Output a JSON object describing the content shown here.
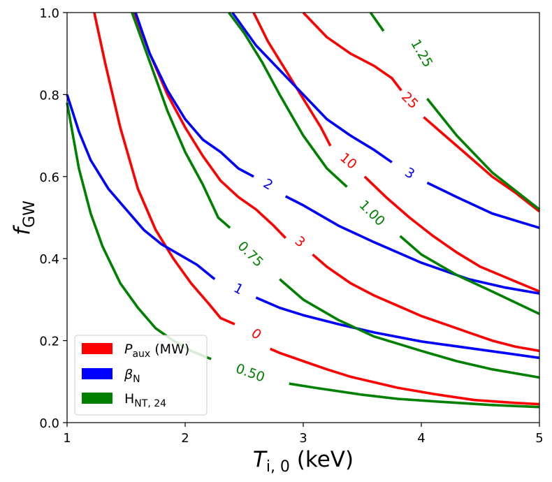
{
  "chart_data": {
    "type": "line",
    "xlabel": "Ti,0 (keV)",
    "ylabel": "fGW",
    "xlim": [
      1,
      5
    ],
    "ylim": [
      0,
      1
    ],
    "x_ticks": [
      "1",
      "2",
      "3",
      "4",
      "5"
    ],
    "y_ticks": [
      "0.0",
      "0.2",
      "0.4",
      "0.6",
      "0.8",
      "1.0"
    ],
    "grid": false,
    "legend": {
      "position": "bottom-left",
      "entries": [
        {
          "label": "Paux (MW)",
          "color": "#ff0000"
        },
        {
          "label": "βN",
          "color": "#0000ff"
        },
        {
          "label": "HNT,24",
          "color": "#008000"
        }
      ]
    },
    "series": [
      {
        "name": "Paux (MW)",
        "color": "#ff0000",
        "levels": [
          {
            "label": "0",
            "label_at": [
              2.6,
              0.215
            ],
            "label_angle": 37,
            "segments": [
              [
                [
                  1.23,
                  1.0
                ],
                [
                  1.32,
                  0.88
                ],
                [
                  1.45,
                  0.72
                ],
                [
                  1.6,
                  0.57
                ],
                [
                  1.75,
                  0.47
                ],
                [
                  1.9,
                  0.4
                ],
                [
                  2.05,
                  0.34
                ],
                [
                  2.2,
                  0.29
                ],
                [
                  2.3,
                  0.255
                ],
                [
                  2.42,
                  0.24
                ]
              ],
              [
                [
                  2.72,
                  0.18
                ],
                [
                  2.8,
                  0.17
                ],
                [
                  3.0,
                  0.15
                ],
                [
                  3.2,
                  0.13
                ],
                [
                  3.4,
                  0.112
                ],
                [
                  3.8,
                  0.085
                ],
                [
                  4.1,
                  0.07
                ],
                [
                  4.45,
                  0.055
                ],
                [
                  4.8,
                  0.048
                ],
                [
                  5.0,
                  0.045
                ]
              ]
            ]
          },
          {
            "label": "3",
            "label_at": [
              2.97,
              0.44
            ],
            "label_angle": 40,
            "segments": [
              [
                [
                  1.57,
                  1.0
                ],
                [
                  1.7,
                  0.9
                ],
                [
                  1.85,
                  0.8
                ],
                [
                  2.0,
                  0.72
                ],
                [
                  2.15,
                  0.65
                ],
                [
                  2.3,
                  0.59
                ],
                [
                  2.45,
                  0.55
                ],
                [
                  2.6,
                  0.52
                ],
                [
                  2.75,
                  0.48
                ],
                [
                  2.85,
                  0.45
                ]
              ],
              [
                [
                  3.08,
                  0.41
                ],
                [
                  3.2,
                  0.38
                ],
                [
                  3.4,
                  0.34
                ],
                [
                  3.6,
                  0.31
                ],
                [
                  3.8,
                  0.285
                ],
                [
                  4.0,
                  0.26
                ],
                [
                  4.2,
                  0.24
                ],
                [
                  4.4,
                  0.22
                ],
                [
                  4.6,
                  0.2
                ],
                [
                  4.8,
                  0.185
                ],
                [
                  5.0,
                  0.175
                ]
              ]
            ]
          },
          {
            "label": "10",
            "label_at": [
              3.38,
              0.637
            ],
            "label_angle": 40,
            "segments": [
              [
                [
                  2.58,
                  1.0
                ],
                [
                  2.7,
                  0.93
                ],
                [
                  2.85,
                  0.86
                ],
                [
                  3.0,
                  0.79
                ],
                [
                  3.15,
                  0.72
                ],
                [
                  3.23,
                  0.675
                ]
              ],
              [
                [
                  3.52,
                  0.6
                ],
                [
                  3.7,
                  0.55
                ],
                [
                  3.9,
                  0.5
                ],
                [
                  4.1,
                  0.455
                ],
                [
                  4.3,
                  0.415
                ],
                [
                  4.5,
                  0.38
                ],
                [
                  4.75,
                  0.35
                ],
                [
                  5.0,
                  0.32
                ]
              ]
            ]
          },
          {
            "label": "25",
            "label_at": [
              3.9,
              0.785
            ],
            "label_angle": 45,
            "segments": [
              [
                [
                  3.0,
                  1.0
                ],
                [
                  3.2,
                  0.94
                ],
                [
                  3.4,
                  0.9
                ],
                [
                  3.6,
                  0.87
                ],
                [
                  3.75,
                  0.84
                ],
                [
                  3.83,
                  0.81
                ]
              ],
              [
                [
                  4.02,
                  0.745
                ],
                [
                  4.2,
                  0.7
                ],
                [
                  4.4,
                  0.65
                ],
                [
                  4.6,
                  0.6
                ],
                [
                  4.8,
                  0.56
                ],
                [
                  5.0,
                  0.515
                ]
              ]
            ]
          }
        ]
      },
      {
        "name": "βN",
        "color": "#0000ff",
        "levels": [
          {
            "label": "1",
            "label_at": [
              2.45,
              0.325
            ],
            "label_angle": 28,
            "segments": [
              [
                [
                  1.0,
                  0.8
                ],
                [
                  1.1,
                  0.71
                ],
                [
                  1.2,
                  0.64
                ],
                [
                  1.35,
                  0.57
                ],
                [
                  1.5,
                  0.52
                ],
                [
                  1.65,
                  0.47
                ],
                [
                  1.8,
                  0.435
                ],
                [
                  1.95,
                  0.41
                ],
                [
                  2.1,
                  0.385
                ],
                [
                  2.25,
                  0.35
                ]
              ],
              [
                [
                  2.6,
                  0.305
                ],
                [
                  2.8,
                  0.28
                ],
                [
                  3.0,
                  0.262
                ],
                [
                  3.3,
                  0.24
                ],
                [
                  3.6,
                  0.22
                ],
                [
                  4.0,
                  0.198
                ],
                [
                  4.4,
                  0.182
                ],
                [
                  4.7,
                  0.17
                ],
                [
                  5.0,
                  0.158
                ]
              ]
            ]
          },
          {
            "label": "2",
            "label_at": [
              2.7,
              0.58
            ],
            "label_angle": 30,
            "segments": [
              [
                [
                  1.58,
                  1.0
                ],
                [
                  1.7,
                  0.9
                ],
                [
                  1.85,
                  0.81
                ],
                [
                  2.0,
                  0.74
                ],
                [
                  2.15,
                  0.69
                ],
                [
                  2.3,
                  0.66
                ],
                [
                  2.45,
                  0.62
                ],
                [
                  2.58,
                  0.6
                ]
              ],
              [
                [
                  2.85,
                  0.552
                ],
                [
                  3.0,
                  0.53
                ],
                [
                  3.3,
                  0.48
                ],
                [
                  3.6,
                  0.44
                ],
                [
                  4.0,
                  0.39
                ],
                [
                  4.4,
                  0.35
                ],
                [
                  4.7,
                  0.33
                ],
                [
                  5.0,
                  0.315
                ]
              ]
            ]
          },
          {
            "label": "3",
            "label_at": [
              3.9,
              0.607
            ],
            "label_angle": 32,
            "segments": [
              [
                [
                  2.4,
                  1.0
                ],
                [
                  2.6,
                  0.92
                ],
                [
                  2.8,
                  0.86
                ],
                [
                  3.0,
                  0.8
                ],
                [
                  3.2,
                  0.74
                ],
                [
                  3.4,
                  0.7
                ],
                [
                  3.6,
                  0.665
                ],
                [
                  3.75,
                  0.635
                ]
              ],
              [
                [
                  4.05,
                  0.585
                ],
                [
                  4.3,
                  0.55
                ],
                [
                  4.6,
                  0.51
                ],
                [
                  5.0,
                  0.475
                ]
              ]
            ]
          }
        ]
      },
      {
        "name": "HNT,24",
        "color": "#008000",
        "levels": [
          {
            "label": "0.50",
            "label_at": [
              2.55,
              0.12
            ],
            "label_angle": 20,
            "segments": [
              [
                [
                  1.0,
                  0.78
                ],
                [
                  1.1,
                  0.62
                ],
                [
                  1.2,
                  0.51
                ],
                [
                  1.3,
                  0.43
                ],
                [
                  1.45,
                  0.34
                ],
                [
                  1.6,
                  0.28
                ],
                [
                  1.75,
                  0.23
                ],
                [
                  1.9,
                  0.2
                ],
                [
                  2.05,
                  0.175
                ],
                [
                  2.22,
                  0.155
                ]
              ],
              [
                [
                  2.88,
                  0.095
                ],
                [
                  3.1,
                  0.085
                ],
                [
                  3.5,
                  0.068
                ],
                [
                  3.8,
                  0.058
                ],
                [
                  4.2,
                  0.05
                ],
                [
                  4.6,
                  0.043
                ],
                [
                  5.0,
                  0.038
                ]
              ]
            ]
          },
          {
            "label": "0.75",
            "label_at": [
              2.55,
              0.41
            ],
            "label_angle": 45,
            "segments": [
              [
                [
                  1.55,
                  1.0
                ],
                [
                  1.7,
                  0.88
                ],
                [
                  1.85,
                  0.76
                ],
                [
                  2.0,
                  0.66
                ],
                [
                  2.15,
                  0.58
                ],
                [
                  2.28,
                  0.5
                ],
                [
                  2.38,
                  0.475
                ]
              ],
              [
                [
                  2.8,
                  0.35
                ],
                [
                  3.0,
                  0.3
                ],
                [
                  3.3,
                  0.25
                ],
                [
                  3.6,
                  0.21
                ],
                [
                  4.0,
                  0.175
                ],
                [
                  4.3,
                  0.15
                ],
                [
                  4.6,
                  0.13
                ],
                [
                  5.0,
                  0.11
                ]
              ]
            ]
          },
          {
            "label": "1.00",
            "label_at": [
              3.58,
              0.51
            ],
            "label_angle": 45,
            "segments": [
              [
                [
                  2.37,
                  1.0
                ],
                [
                  2.5,
                  0.95
                ],
                [
                  2.65,
                  0.88
                ],
                [
                  2.8,
                  0.8
                ],
                [
                  3.0,
                  0.7
                ],
                [
                  3.2,
                  0.62
                ],
                [
                  3.37,
                  0.575
                ]
              ],
              [
                [
                  3.82,
                  0.455
                ],
                [
                  4.0,
                  0.41
                ],
                [
                  4.3,
                  0.36
                ],
                [
                  4.6,
                  0.32
                ],
                [
                  5.0,
                  0.265
                ]
              ]
            ]
          },
          {
            "label": "1.25",
            "label_at": [
              4.0,
              0.9
            ],
            "label_angle": 60,
            "segments": [
              [
                [
                  3.57,
                  1.0
                ],
                [
                  3.68,
                  0.955
                ]
              ],
              [
                [
                  4.05,
                  0.79
                ],
                [
                  4.3,
                  0.7
                ],
                [
                  4.6,
                  0.61
                ],
                [
                  5.0,
                  0.52
                ]
              ]
            ]
          }
        ]
      }
    ]
  }
}
